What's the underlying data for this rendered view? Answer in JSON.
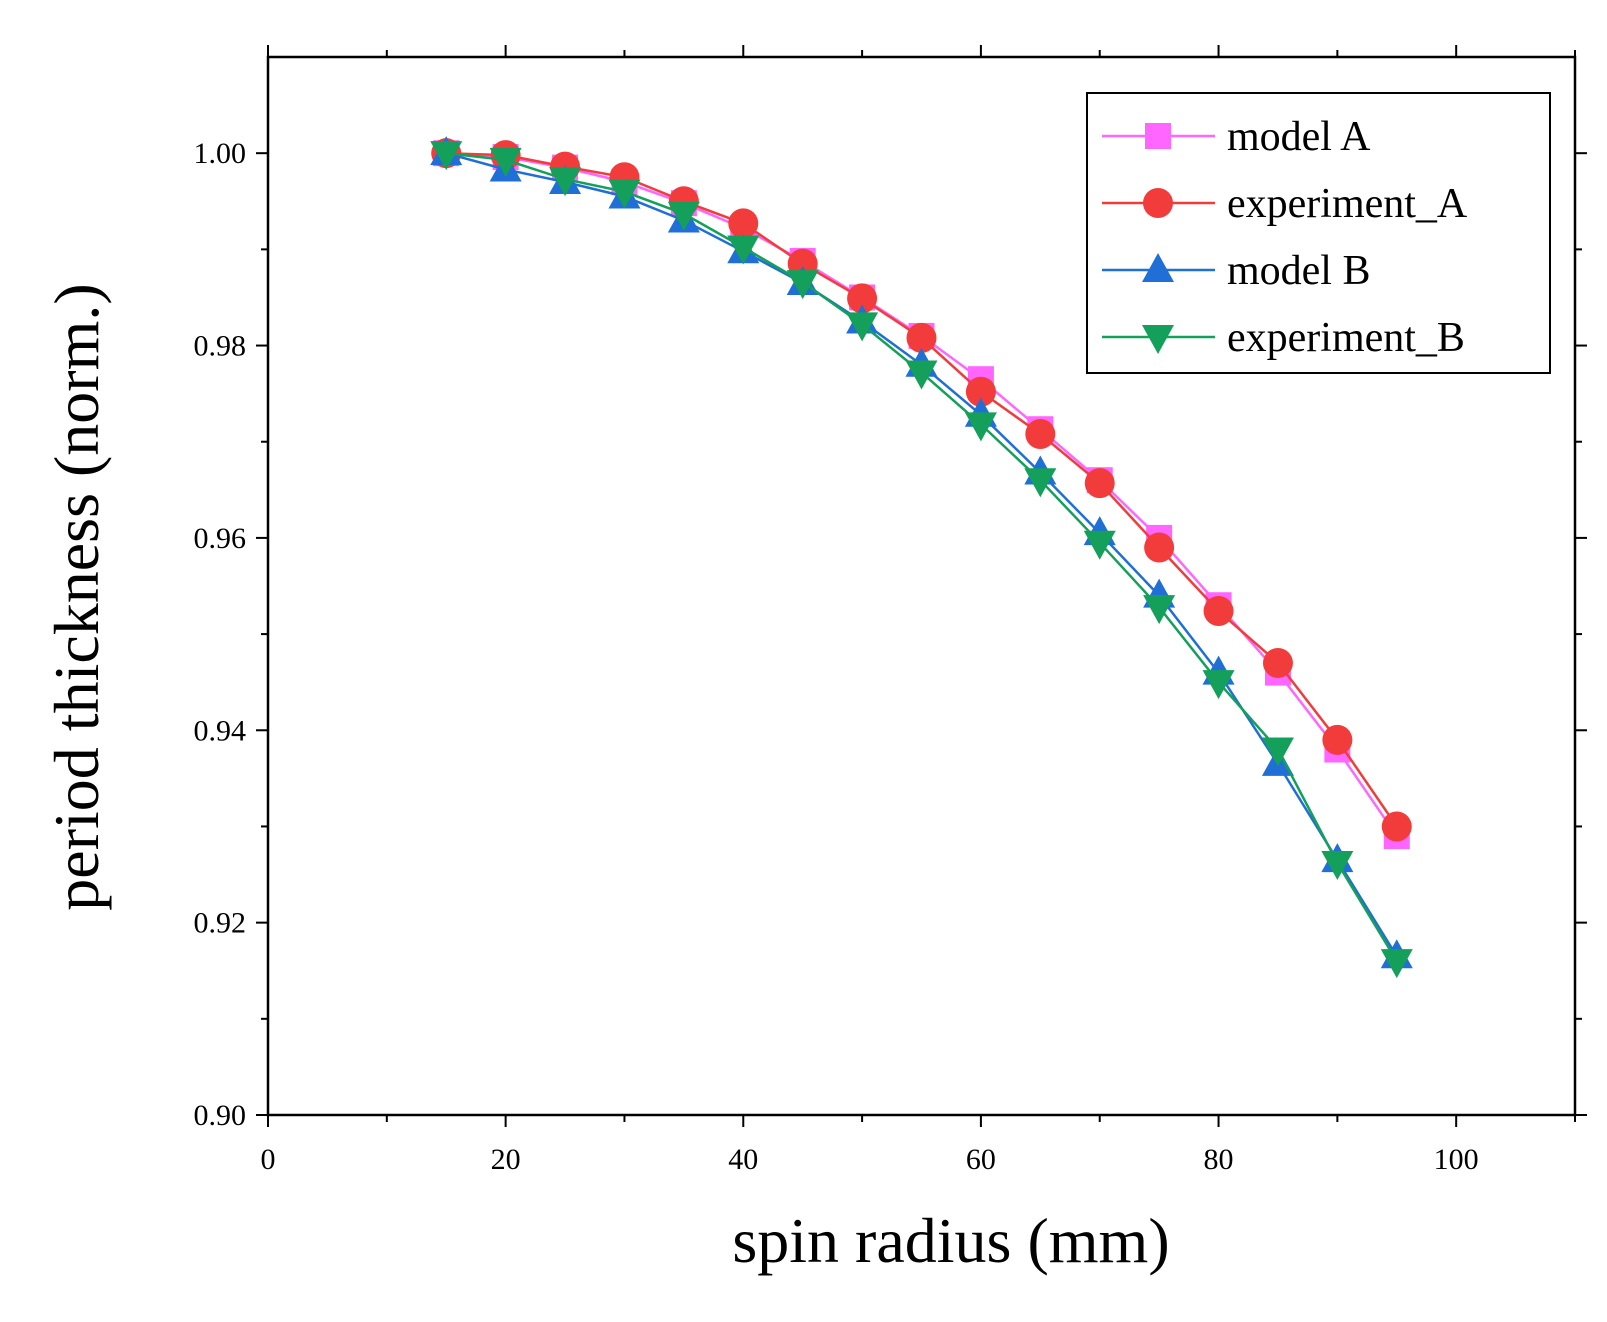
{
  "chart_data": {
    "type": "line",
    "title": "",
    "xlabel": "spin radius (mm)",
    "ylabel": "period thickness (norm.)",
    "xlim": [
      0,
      110
    ],
    "ylim": [
      0.9,
      1.01
    ],
    "x_ticks": [
      {
        "value": 0,
        "label": "0"
      },
      {
        "value": 20,
        "label": "20"
      },
      {
        "value": 40,
        "label": "40"
      },
      {
        "value": 60,
        "label": "60"
      },
      {
        "value": 80,
        "label": "80"
      },
      {
        "value": 100,
        "label": "100"
      }
    ],
    "x_minor_ticks": [
      10,
      30,
      50,
      70,
      90,
      110
    ],
    "y_ticks": [
      {
        "value": 0.9,
        "label": "0.90"
      },
      {
        "value": 0.92,
        "label": "0.92"
      },
      {
        "value": 0.94,
        "label": "0.94"
      },
      {
        "value": 0.96,
        "label": "0.96"
      },
      {
        "value": 0.98,
        "label": "0.98"
      },
      {
        "value": 1.0,
        "label": "1.00"
      }
    ],
    "y_minor_ticks": [
      0.91,
      0.93,
      0.95,
      0.97,
      0.99
    ],
    "grid": false,
    "legend_position": "top-right",
    "x": [
      15,
      20,
      25,
      30,
      35,
      40,
      45,
      50,
      55,
      60,
      65,
      70,
      75,
      80,
      85,
      90,
      95
    ],
    "series": [
      {
        "name": "model A",
        "color": "#ff66ff",
        "marker": "square",
        "values": [
          1.0,
          0.9996,
          0.9985,
          0.997,
          0.9948,
          0.9922,
          0.9888,
          0.985,
          0.981,
          0.9765,
          0.9713,
          0.966,
          0.96,
          0.953,
          0.946,
          0.938,
          0.929
        ]
      },
      {
        "name": "experiment_A",
        "color": "#f23c3c",
        "marker": "circle",
        "values": [
          1.0,
          0.9998,
          0.9986,
          0.9975,
          0.995,
          0.9927,
          0.9885,
          0.9849,
          0.9808,
          0.9752,
          0.9708,
          0.9657,
          0.959,
          0.9524,
          0.947,
          0.939,
          0.93
        ]
      },
      {
        "name": "model B",
        "color": "#1f6fd6",
        "marker": "triangle-up",
        "values": [
          1.0,
          0.9983,
          0.997,
          0.9955,
          0.993,
          0.9898,
          0.9865,
          0.9825,
          0.978,
          0.9728,
          0.9668,
          0.9605,
          0.954,
          0.946,
          0.9365,
          0.9265,
          0.9165
        ]
      },
      {
        "name": "experiment_B",
        "color": "#14a05a",
        "marker": "triangle-down",
        "values": [
          1.0,
          0.9993,
          0.9973,
          0.996,
          0.9937,
          0.9902,
          0.9866,
          0.9822,
          0.9772,
          0.9718,
          0.966,
          0.9595,
          0.9528,
          0.945,
          0.938,
          0.9262,
          0.916
        ]
      }
    ]
  }
}
